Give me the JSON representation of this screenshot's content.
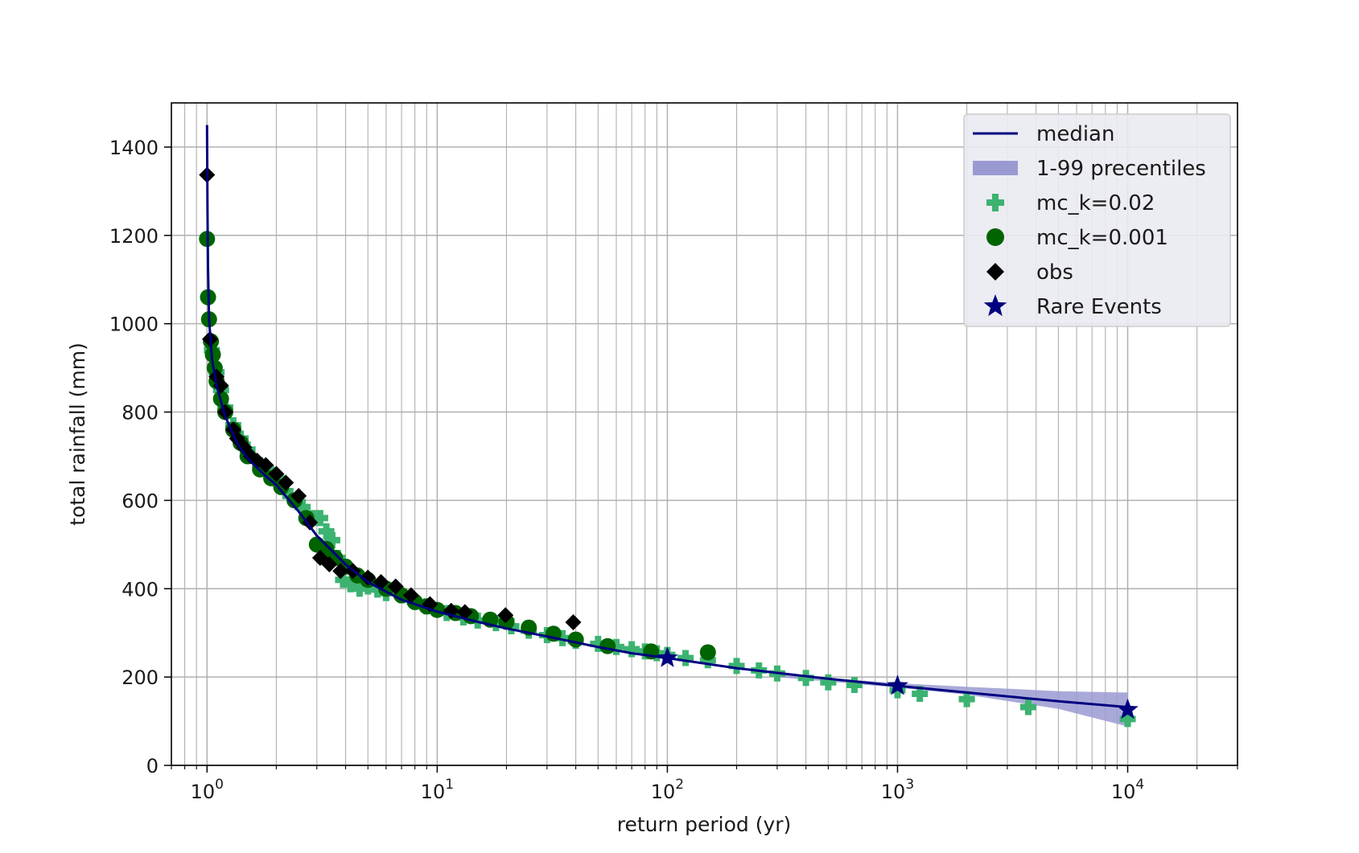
{
  "chart_data": {
    "type": "scatter",
    "title": "",
    "xlabel": "return period (yr)",
    "ylabel": "total rainfall (mm)",
    "x_scale": "log",
    "xlim": [
      0.7,
      30000
    ],
    "ylim": [
      0,
      1500
    ],
    "grid": true,
    "grid_minor_x": true,
    "legend_placement": "top-right",
    "x_ticks": [
      {
        "value": 1,
        "base": "10",
        "exp": "0"
      },
      {
        "value": 10,
        "base": "10",
        "exp": "1"
      },
      {
        "value": 100,
        "base": "10",
        "exp": "2"
      },
      {
        "value": 1000,
        "base": "10",
        "exp": "3"
      },
      {
        "value": 10000,
        "base": "10",
        "exp": "4"
      }
    ],
    "y_ticks": [
      {
        "value": 0,
        "label": "0"
      },
      {
        "value": 200,
        "label": "200"
      },
      {
        "value": 400,
        "label": "400"
      },
      {
        "value": 600,
        "label": "600"
      },
      {
        "value": 800,
        "label": "800"
      },
      {
        "value": 1000,
        "label": "1000"
      },
      {
        "value": 1200,
        "label": "1200"
      },
      {
        "value": 1400,
        "label": "1400"
      }
    ],
    "legend": [
      {
        "label": "median",
        "kind": "line",
        "color": "#000080"
      },
      {
        "label": "1-99 precentiles",
        "kind": "band",
        "color": "#9a9ad2"
      },
      {
        "label": "mc_k=0.02",
        "kind": "plus",
        "color": "#3cb371"
      },
      {
        "label": "mc_k=0.001",
        "kind": "circle",
        "color": "#006400"
      },
      {
        "label": "obs",
        "kind": "diamond",
        "color": "#000000"
      },
      {
        "label": "Rare Events",
        "kind": "star",
        "color": "#000080"
      }
    ],
    "series": {
      "median": {
        "color": "#000080",
        "x": [
          1.0,
          1.005,
          1.01,
          1.02,
          1.05,
          1.1,
          1.2,
          1.35,
          1.5,
          1.8,
          2.0,
          2.5,
          3.0,
          4.0,
          5.0,
          7.0,
          10,
          15,
          20,
          30,
          50,
          70,
          100,
          200,
          500,
          1000,
          2000,
          5000,
          10000
        ],
        "y": [
          1450,
          1250,
          1130,
          1010,
          920,
          860,
          790,
          730,
          695,
          655,
          635,
          575,
          520,
          455,
          415,
          375,
          348,
          325,
          310,
          292,
          268,
          254,
          243,
          220,
          196,
          180,
          165,
          145,
          132
        ]
      },
      "band": {
        "color": "#9a9ad2",
        "x": [
          300,
          1000,
          2000,
          5000,
          10000
        ],
        "lower": [
          200,
          176,
          160,
          128,
          88
        ],
        "upper": [
          206,
          186,
          178,
          168,
          165
        ]
      },
      "mc_k_0_02": {
        "color": "#3cb371",
        "x": [
          1.05,
          1.1,
          1.15,
          1.2,
          1.3,
          1.4,
          1.5,
          1.7,
          1.9,
          2.1,
          2.3,
          2.6,
          2.9,
          3.1,
          3.3,
          3.5,
          3.7,
          3.9,
          4.2,
          4.6,
          5.0,
          5.5,
          6.0,
          7.0,
          8.0,
          9.0,
          11,
          13,
          15,
          18,
          21,
          25,
          30,
          35,
          40,
          50,
          60,
          70,
          80,
          90,
          100,
          120,
          150,
          200,
          250,
          300,
          400,
          500,
          650,
          1000,
          1250,
          2000,
          3700,
          10000
        ],
        "y": [
          940,
          890,
          850,
          810,
          770,
          740,
          715,
          680,
          660,
          640,
          610,
          585,
          560,
          560,
          530,
          510,
          470,
          420,
          410,
          400,
          405,
          398,
          390,
          385,
          370,
          360,
          345,
          335,
          328,
          322,
          315,
          305,
          295,
          288,
          282,
          275,
          268,
          263,
          258,
          254,
          250,
          243,
          238,
          225,
          215,
          208,
          198,
          188,
          182,
          170,
          162,
          150,
          132,
          105
        ]
      },
      "mc_k_0_001": {
        "color": "#006400",
        "x": [
          1.0,
          1.01,
          1.02,
          1.04,
          1.06,
          1.08,
          1.1,
          1.15,
          1.2,
          1.3,
          1.4,
          1.5,
          1.7,
          1.9,
          2.1,
          2.4,
          2.7,
          3.0,
          3.3,
          3.6,
          4.0,
          4.5,
          5.0,
          6.0,
          7.0,
          8.0,
          9.0,
          10,
          12,
          14,
          17,
          20,
          25,
          32,
          40,
          55,
          85,
          150
        ],
        "y": [
          1192,
          1060,
          1010,
          960,
          930,
          900,
          870,
          830,
          800,
          760,
          730,
          700,
          670,
          650,
          630,
          600,
          560,
          500,
          490,
          470,
          450,
          430,
          420,
          400,
          385,
          370,
          360,
          352,
          345,
          338,
          330,
          325,
          312,
          298,
          285,
          270,
          258,
          256
        ]
      },
      "obs": {
        "color": "#000000",
        "x": [
          1.0,
          1.03,
          1.1,
          1.15,
          1.2,
          1.3,
          1.35,
          1.45,
          1.55,
          1.65,
          1.8,
          2.0,
          2.2,
          2.5,
          2.8,
          3.1,
          3.4,
          3.8,
          4.3,
          5.0,
          5.7,
          6.6,
          7.7,
          9.3,
          11.5,
          13.2,
          19.8,
          39.0
        ],
        "y": [
          1337,
          965,
          880,
          860,
          800,
          760,
          740,
          720,
          700,
          690,
          680,
          660,
          640,
          610,
          550,
          470,
          455,
          440,
          440,
          425,
          415,
          405,
          385,
          365,
          350,
          347,
          340,
          324
        ]
      },
      "rare_events": {
        "color": "#000080",
        "x": [
          100,
          1000,
          10000
        ],
        "y": [
          243,
          180,
          126
        ]
      }
    }
  }
}
